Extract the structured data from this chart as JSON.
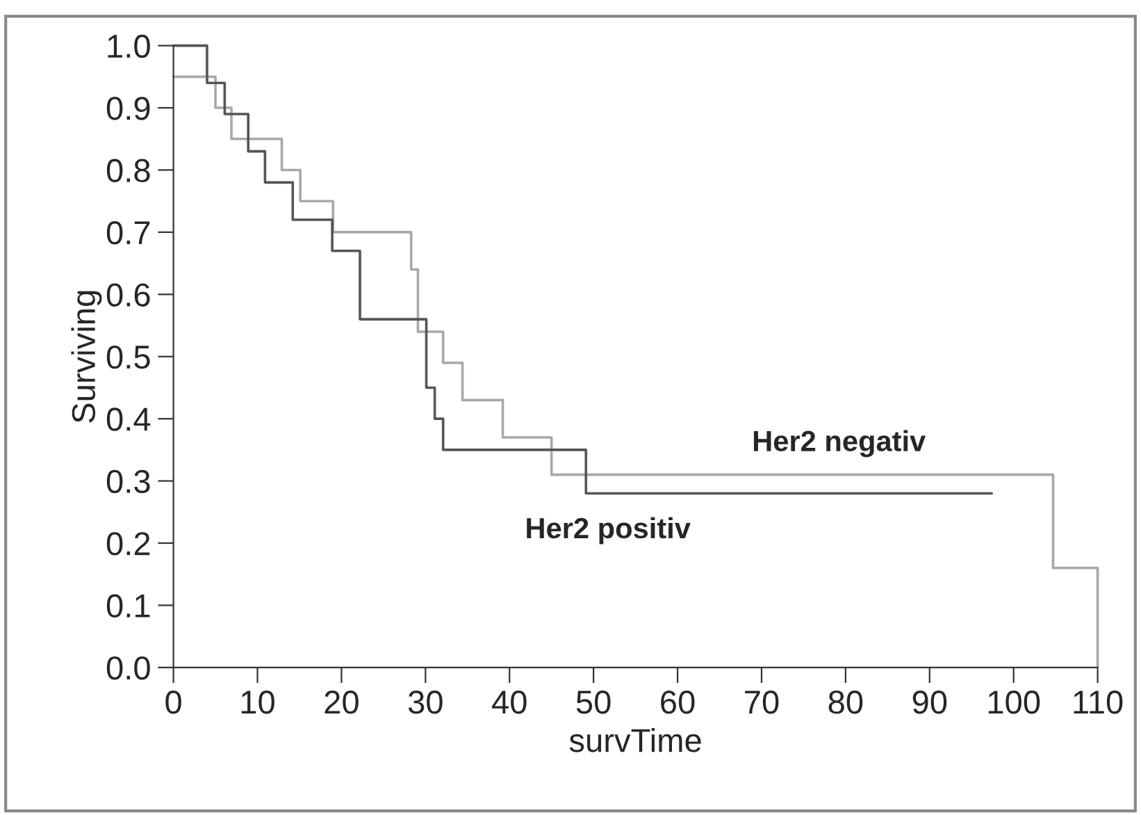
{
  "chart_data": {
    "type": "step",
    "xlabel": "survTime",
    "ylabel": "Surviving",
    "series": [
      {
        "name": "Her2 negativ",
        "color": "#a8a8a8",
        "x": [
          0,
          5.0,
          6.9,
          12.9,
          15.1,
          19.0,
          28.3,
          29.1,
          32.1,
          34.4,
          39.2,
          45.0,
          104.7,
          110.0
        ],
        "values": [
          0.95,
          0.9,
          0.85,
          0.8,
          0.75,
          0.7,
          0.64,
          0.54,
          0.49,
          0.43,
          0.37,
          0.31,
          0.16,
          0
        ]
      },
      {
        "name": "Her2 positiv",
        "color": "#555555",
        "x": [
          0,
          4.0,
          6.1,
          8.9,
          10.9,
          14.2,
          18.9,
          22.2,
          30.1,
          31.1,
          32.1,
          49.1,
          97.4
        ],
        "values": [
          1.0,
          0.94,
          0.89,
          0.83,
          0.78,
          0.72,
          0.67,
          0.56,
          0.45,
          0.4,
          0.35,
          0.28,
          0.28
        ]
      }
    ],
    "xlim": [
      0,
      110
    ],
    "xticks": [
      0,
      10,
      20,
      30,
      40,
      50,
      60,
      70,
      80,
      90,
      100,
      110
    ],
    "ylim": [
      0,
      1.0
    ],
    "yticks": [
      {
        "value": 0,
        "label": "0.0"
      },
      {
        "value": 0.1,
        "label": "0.1"
      },
      {
        "value": 0.2,
        "label": "0.2"
      },
      {
        "value": 0.3,
        "label": "0.3"
      },
      {
        "value": 0.4,
        "label": "0.4"
      },
      {
        "value": 0.5,
        "label": "0.5"
      },
      {
        "value": 0.6,
        "label": "0.6"
      },
      {
        "value": 0.7,
        "label": "0.7"
      },
      {
        "value": 0.8,
        "label": "0.8"
      },
      {
        "value": 0.9,
        "label": "0.9"
      },
      {
        "value": 1.0,
        "label": "1.0"
      }
    ],
    "grid": false,
    "legend": false
  }
}
